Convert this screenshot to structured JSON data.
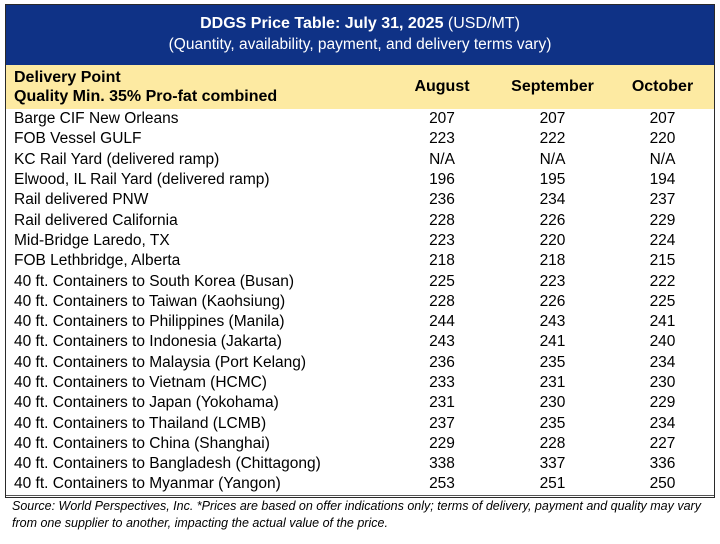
{
  "header": {
    "title_bold": "DDGS Price Table: July 31, 2025",
    "title_unit": " (USD/MT)",
    "subtitle": "(Quantity, availability, payment, and delivery terms vary)"
  },
  "columns": {
    "point_line1": "Delivery Point",
    "point_line2": "Quality Min. 35% Pro-fat combined",
    "months": [
      "August",
      "September",
      "October"
    ]
  },
  "rows": [
    {
      "point": "Barge CIF New Orleans",
      "values": [
        "207",
        "207",
        "207"
      ]
    },
    {
      "point": "FOB Vessel GULF",
      "values": [
        "223",
        "222",
        "220"
      ]
    },
    {
      "point": "KC Rail Yard (delivered ramp)",
      "values": [
        "N/A",
        "N/A",
        "N/A"
      ]
    },
    {
      "point": "Elwood, IL Rail Yard (delivered ramp)",
      "values": [
        "196",
        "195",
        "194"
      ]
    },
    {
      "point": "Rail delivered PNW",
      "values": [
        "236",
        "234",
        "237"
      ]
    },
    {
      "point": "Rail delivered California",
      "values": [
        "228",
        "226",
        "229"
      ]
    },
    {
      "point": "Mid-Bridge Laredo, TX",
      "values": [
        "223",
        "220",
        "224"
      ]
    },
    {
      "point": "FOB Lethbridge, Alberta",
      "values": [
        "218",
        "218",
        "215"
      ]
    },
    {
      "point": "40 ft. Containers to South Korea (Busan)",
      "values": [
        "225",
        "223",
        "222"
      ]
    },
    {
      "point": "40 ft. Containers to Taiwan (Kaohsiung)",
      "values": [
        "228",
        "226",
        "225"
      ]
    },
    {
      "point": "40 ft. Containers to Philippines (Manila)",
      "values": [
        "244",
        "243",
        "241"
      ]
    },
    {
      "point": "40 ft. Containers to Indonesia (Jakarta)",
      "values": [
        "243",
        "241",
        "240"
      ]
    },
    {
      "point": "40 ft. Containers to Malaysia (Port Kelang)",
      "values": [
        "236",
        "235",
        "234"
      ]
    },
    {
      "point": "40 ft. Containers to Vietnam (HCMC)",
      "values": [
        "233",
        "231",
        "230"
      ]
    },
    {
      "point": "40 ft. Containers to Japan (Yokohama)",
      "values": [
        "231",
        "230",
        "229"
      ]
    },
    {
      "point": "40 ft. Containers to Thailand (LCMB)",
      "values": [
        "237",
        "235",
        "234"
      ]
    },
    {
      "point": "40 ft. Containers to China (Shanghai)",
      "values": [
        "229",
        "228",
        "227"
      ]
    },
    {
      "point": "40 ft. Containers to Bangladesh (Chittagong)",
      "values": [
        "338",
        "337",
        "336"
      ]
    },
    {
      "point": "40 ft. Containers to Myanmar (Yangon)",
      "values": [
        "253",
        "251",
        "250"
      ]
    }
  ],
  "footer": {
    "source": "Source: World Perspectives, Inc. *Prices are based on offer indications only; terms of delivery, payment and quality may vary from one supplier to another, impacting the actual value of the price."
  },
  "colors": {
    "header_bg": "#0f3286",
    "header_text": "#ffffff",
    "column_header_bg": "#fdeaa2"
  }
}
